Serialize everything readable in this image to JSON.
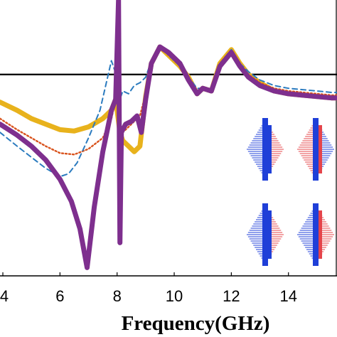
{
  "chart_data": {
    "type": "line",
    "title": "",
    "xlabel": "Frequency(GHz)",
    "ylabel": "",
    "xlim": [
      3.9,
      15.7
    ],
    "ylim": [
      0,
      1
    ],
    "x_ticks": [
      "4",
      "6",
      "8",
      "10",
      "12",
      "14"
    ],
    "grid": false,
    "legend": "none",
    "reference_line": {
      "y": 0.73,
      "color": "#000000"
    },
    "series": [
      {
        "color": "#E8B21C",
        "style": "thick-solid",
        "x": [
          3.9,
          4.5,
          5.0,
          5.5,
          6.0,
          6.5,
          7.0,
          7.5,
          7.8,
          7.95,
          8.1,
          8.2,
          8.4,
          8.6,
          8.8,
          9.0,
          9.2,
          9.5,
          9.8,
          10.2,
          10.5,
          10.8,
          11.0,
          11.3,
          11.6,
          12.0,
          12.3,
          12.6,
          13.0,
          13.5,
          14.0,
          14.5,
          15.0,
          15.5,
          15.7
        ],
        "y": [
          0.63,
          0.6,
          0.57,
          0.55,
          0.53,
          0.525,
          0.54,
          0.57,
          0.6,
          0.64,
          0.52,
          0.49,
          0.47,
          0.45,
          0.47,
          0.65,
          0.77,
          0.83,
          0.8,
          0.76,
          0.72,
          0.66,
          0.68,
          0.67,
          0.77,
          0.82,
          0.77,
          0.73,
          0.7,
          0.67,
          0.66,
          0.655,
          0.65,
          0.645,
          0.645
        ]
      },
      {
        "color": "#D9541E",
        "style": "dotted",
        "x": [
          3.9,
          4.5,
          5.0,
          5.5,
          6.0,
          6.5,
          7.0,
          7.5,
          7.8,
          8.0,
          8.1,
          8.2,
          8.4,
          8.6,
          8.8,
          9.0,
          9.2,
          9.5,
          9.8,
          10.2,
          10.5,
          10.8,
          11.0,
          11.3,
          11.6,
          12.0,
          12.3,
          12.6,
          13.0,
          13.5,
          14.0,
          14.5,
          15.0,
          15.5,
          15.7
        ],
        "y": [
          0.57,
          0.53,
          0.5,
          0.47,
          0.445,
          0.44,
          0.46,
          0.5,
          0.57,
          0.66,
          0.55,
          0.52,
          0.54,
          0.56,
          0.58,
          0.66,
          0.77,
          0.83,
          0.8,
          0.76,
          0.72,
          0.67,
          0.68,
          0.67,
          0.77,
          0.82,
          0.77,
          0.73,
          0.7,
          0.68,
          0.67,
          0.665,
          0.66,
          0.655,
          0.655
        ]
      },
      {
        "color": "#2B7BBF",
        "style": "dashed",
        "x": [
          3.9,
          4.5,
          5.0,
          5.5,
          6.0,
          6.3,
          6.6,
          7.0,
          7.4,
          7.8,
          8.0,
          8.1,
          8.2,
          8.4,
          8.6,
          8.8,
          9.0,
          9.2,
          9.5,
          9.8,
          10.2,
          10.5,
          10.8,
          11.0,
          11.3,
          11.6,
          12.0,
          12.3,
          12.6,
          13.0,
          13.5,
          14.0,
          14.5,
          15.0,
          15.5,
          15.7
        ],
        "y": [
          0.52,
          0.47,
          0.43,
          0.39,
          0.36,
          0.37,
          0.41,
          0.5,
          0.6,
          0.78,
          0.72,
          0.64,
          0.67,
          0.66,
          0.69,
          0.7,
          0.72,
          0.78,
          0.83,
          0.8,
          0.76,
          0.72,
          0.68,
          0.68,
          0.67,
          0.77,
          0.82,
          0.77,
          0.74,
          0.71,
          0.69,
          0.68,
          0.675,
          0.67,
          0.665,
          0.665
        ]
      },
      {
        "color": "#7E2F8E",
        "style": "thick-solid",
        "x": [
          3.9,
          4.5,
          5.0,
          5.5,
          6.0,
          6.4,
          6.7,
          6.95,
          7.2,
          7.5,
          7.8,
          7.95,
          8.05,
          8.1,
          8.15,
          8.3,
          8.5,
          8.7,
          8.85,
          9.0,
          9.2,
          9.5,
          9.8,
          10.2,
          10.5,
          10.8,
          11.0,
          11.3,
          11.6,
          12.0,
          12.3,
          12.6,
          13.0,
          13.5,
          14.0,
          14.5,
          15.0,
          15.5,
          15.7
        ],
        "y": [
          0.55,
          0.51,
          0.47,
          0.42,
          0.35,
          0.27,
          0.17,
          0.03,
          0.25,
          0.45,
          0.6,
          0.64,
          1.0,
          0.12,
          0.52,
          0.55,
          0.56,
          0.58,
          0.52,
          0.64,
          0.77,
          0.83,
          0.81,
          0.77,
          0.71,
          0.66,
          0.68,
          0.67,
          0.76,
          0.81,
          0.76,
          0.72,
          0.69,
          0.67,
          0.66,
          0.655,
          0.65,
          0.645,
          0.645
        ]
      }
    ]
  },
  "inset": {
    "description": "four hexagonal antenna-element glyphs (blue/red hatched)",
    "colors": {
      "blue": "#1F3FD8",
      "red": "#E5444A"
    }
  }
}
